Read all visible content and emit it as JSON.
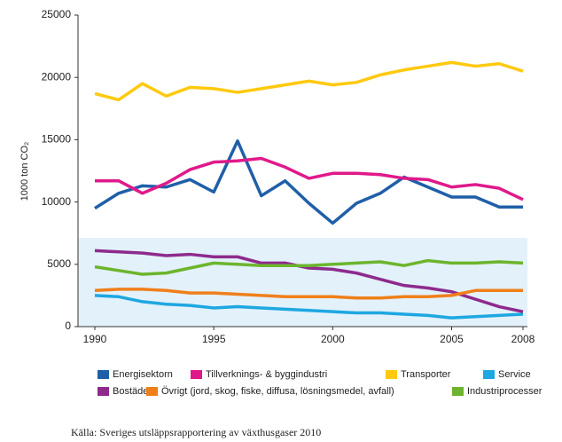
{
  "chart_data": {
    "type": "line",
    "y_label": "1000 ton CO₂",
    "source": "Källa: Sveriges utsläppsrapportering av växthusgaser 2010",
    "x": [
      1990,
      1991,
      1992,
      1993,
      1994,
      1995,
      1996,
      1997,
      1998,
      1999,
      2000,
      2001,
      2002,
      2003,
      2004,
      2005,
      2006,
      2007,
      2008
    ],
    "xlim": [
      1990,
      2008
    ],
    "xticks": [
      1990,
      1995,
      2000,
      2005,
      2008
    ],
    "ylim": [
      0,
      25000
    ],
    "yticks": [
      0,
      5000,
      10000,
      15000,
      20000,
      25000
    ],
    "series": [
      {
        "name": "Energisektorn",
        "color": "#1f5fa8",
        "values": [
          9500,
          10700,
          11300,
          11200,
          11800,
          10800,
          14900,
          10500,
          11700,
          9900,
          8300,
          9900,
          10700,
          12000,
          11200,
          10400,
          10400,
          9600,
          9600
        ]
      },
      {
        "name": "Tillverknings- & byggindustri",
        "color": "#e0198a",
        "values": [
          11700,
          11700,
          10700,
          11500,
          12600,
          13200,
          13300,
          13500,
          12800,
          11900,
          12300,
          12300,
          12200,
          11900,
          11800,
          11200,
          11400,
          11100,
          10200
        ]
      },
      {
        "name": "Transporter",
        "color": "#ffc90e",
        "values": [
          18700,
          18200,
          19500,
          18500,
          19200,
          19100,
          18800,
          19100,
          19400,
          19700,
          19400,
          19600,
          20200,
          20600,
          20900,
          21200,
          20900,
          21100,
          20500
        ]
      },
      {
        "name": "Service",
        "color": "#1ea7e1",
        "values": [
          2500,
          2400,
          2000,
          1800,
          1700,
          1500,
          1600,
          1500,
          1400,
          1300,
          1200,
          1100,
          1100,
          1000,
          900,
          700,
          800,
          900,
          1000
        ]
      },
      {
        "name": "Bostäder",
        "color": "#8e2a8c",
        "values": [
          6100,
          6000,
          5900,
          5700,
          5800,
          5600,
          5600,
          5100,
          5100,
          4700,
          4600,
          4300,
          3800,
          3300,
          3100,
          2800,
          2200,
          1600,
          1200
        ]
      },
      {
        "name": "Övrigt (jord, skog, fiske, diffusa, lösningsmedel, avfall)",
        "color": "#f07f1a",
        "values": [
          2900,
          3000,
          3000,
          2900,
          2700,
          2700,
          2600,
          2500,
          2400,
          2400,
          2400,
          2300,
          2300,
          2400,
          2400,
          2500,
          2900,
          2900,
          2900
        ]
      },
      {
        "name": "Industriprocesser",
        "color": "#6cb52d",
        "values": [
          4800,
          4500,
          4200,
          4300,
          4700,
          5100,
          5000,
          4900,
          4900,
          4900,
          5000,
          5100,
          5200,
          4900,
          5300,
          5100,
          5100,
          5200,
          5100
        ]
      }
    ]
  }
}
